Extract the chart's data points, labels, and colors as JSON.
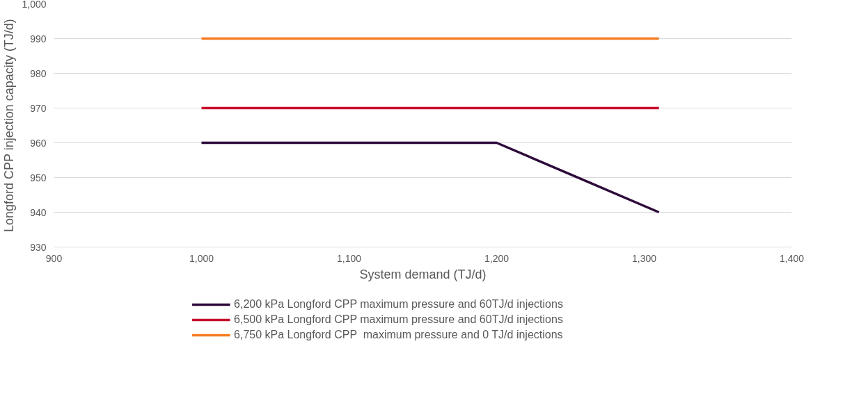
{
  "chart_data": {
    "type": "line",
    "xlabel": "System demand (TJ/d)",
    "ylabel": "Longford CPP injection capacity (TJ/d)",
    "xlim": [
      900,
      1400
    ],
    "xticks": [
      {
        "value": 900,
        "label": "900"
      },
      {
        "value": 1000,
        "label": "1,000"
      },
      {
        "value": 1100,
        "label": "1,100"
      },
      {
        "value": 1200,
        "label": "1,200"
      },
      {
        "value": 1300,
        "label": "1,300"
      },
      {
        "value": 1400,
        "label": "1,400"
      }
    ],
    "ylim": [
      930,
      1000
    ],
    "yticks": [
      930,
      940,
      950,
      960,
      970,
      980,
      990,
      {
        "value": 1000,
        "label": "1,000"
      }
    ],
    "grid": "y",
    "legend": "bottom",
    "marker": "none",
    "line_style": "solid",
    "series": [
      {
        "name": "6,200 kPa Longford CPP maximum pressure and 60TJ/d injections",
        "color": "#2d0a3a",
        "x": [
          1000,
          1200,
          1310
        ],
        "values": [
          960,
          960,
          940
        ]
      },
      {
        "name": "6,500 kPa Longford CPP maximum pressure and 60TJ/d injections",
        "color": "#c8102e",
        "x": [
          1000,
          1310
        ],
        "values": [
          970,
          970
        ]
      },
      {
        "name": "6,750 kPa Longford CPP  maximum pressure and 0 TJ/d injections",
        "color": "#f47b20",
        "x": [
          1000,
          1310
        ],
        "values": [
          990,
          990
        ]
      }
    ]
  }
}
